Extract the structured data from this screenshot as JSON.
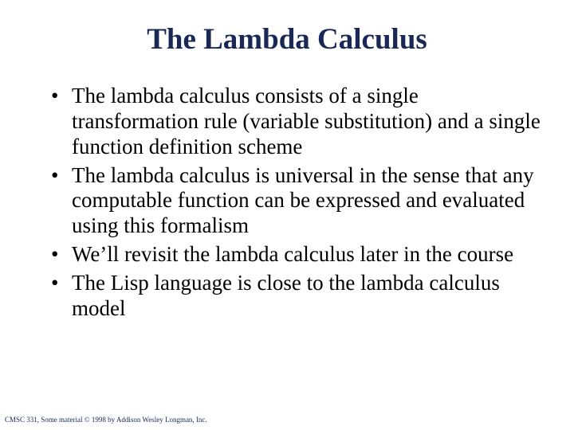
{
  "slide": {
    "title": "The Lambda Calculus",
    "title_color": "#1a2855",
    "title_fontsize": 37,
    "body_color": "#000000",
    "body_fontsize": 27,
    "background_color": "#ffffff",
    "bullets": [
      "The lambda calculus consists of a single transformation rule (variable substitution) and a single function definition scheme",
      "The lambda calculus is universal in the sense that any computable function can be expressed and evaluated using this formalism",
      "We’ll revisit the lambda calculus later in the course",
      "The Lisp language is close to the lambda calculus model"
    ],
    "footer": "CMSC 331, Some material © 1998 by Addison Wesley Longman, Inc.",
    "footer_color": "#1a2855",
    "footer_fontsize": 9
  }
}
